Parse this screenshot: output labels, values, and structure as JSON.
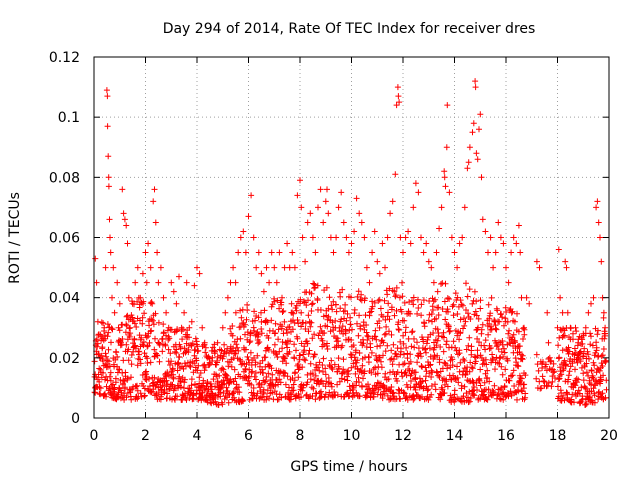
{
  "chart_data": {
    "type": "scatter",
    "title": "Day 294 of 2014, Rate Of TEC Index for receiver dres",
    "xlabel": "GPS time / hours",
    "ylabel": "ROTI / TECUs",
    "xlim": [
      0,
      20
    ],
    "ylim": [
      0,
      0.12
    ],
    "xticks": [
      0,
      2,
      4,
      6,
      8,
      10,
      12,
      14,
      16,
      18,
      20
    ],
    "xtick_labels": [
      "0",
      "2",
      "4",
      "6",
      "8",
      "10",
      "12",
      "14",
      "16",
      "18",
      "20"
    ],
    "yticks": [
      0,
      0.02,
      0.04,
      0.06,
      0.08,
      0.1,
      0.12
    ],
    "ytick_labels": [
      "0",
      "0.02",
      "0.04",
      "0.06",
      "0.08",
      "0.1",
      "0.12"
    ],
    "grid": true,
    "marker": "+",
    "color": "#ff0000",
    "series": [
      {
        "name": "ROTI",
        "points": [
          [
            0.05,
            0.053
          ],
          [
            0.1,
            0.045
          ],
          [
            0.15,
            0.032
          ],
          [
            0.2,
            0.012
          ],
          [
            0.25,
            0.02
          ],
          [
            0.3,
            0.027
          ],
          [
            0.35,
            0.015
          ],
          [
            0.4,
            0.03
          ],
          [
            0.45,
            0.05
          ],
          [
            0.5,
            0.109
          ],
          [
            0.52,
            0.107
          ],
          [
            0.53,
            0.097
          ],
          [
            0.55,
            0.087
          ],
          [
            0.57,
            0.08
          ],
          [
            0.58,
            0.077
          ],
          [
            0.6,
            0.066
          ],
          [
            0.62,
            0.06
          ],
          [
            0.65,
            0.055
          ],
          [
            0.7,
            0.04
          ],
          [
            0.75,
            0.05
          ],
          [
            0.8,
            0.035
          ],
          [
            0.85,
            0.022
          ],
          [
            0.9,
            0.045
          ],
          [
            0.95,
            0.03
          ],
          [
            1.0,
            0.038
          ],
          [
            1.05,
            0.025
          ],
          [
            1.1,
            0.076
          ],
          [
            1.15,
            0.068
          ],
          [
            1.2,
            0.066
          ],
          [
            1.25,
            0.064
          ],
          [
            1.3,
            0.058
          ],
          [
            1.35,
            0.04
          ],
          [
            1.4,
            0.03
          ],
          [
            1.5,
            0.038
          ],
          [
            1.6,
            0.045
          ],
          [
            1.7,
            0.05
          ],
          [
            1.8,
            0.04
          ],
          [
            1.9,
            0.048
          ],
          [
            2.0,
            0.055
          ],
          [
            2.05,
            0.045
          ],
          [
            2.1,
            0.058
          ],
          [
            2.2,
            0.05
          ],
          [
            2.3,
            0.072
          ],
          [
            2.35,
            0.076
          ],
          [
            2.4,
            0.065
          ],
          [
            2.45,
            0.055
          ],
          [
            2.5,
            0.045
          ],
          [
            2.6,
            0.05
          ],
          [
            2.7,
            0.04
          ],
          [
            2.8,
            0.035
          ],
          [
            2.9,
            0.03
          ],
          [
            3.0,
            0.045
          ],
          [
            3.1,
            0.042
          ],
          [
            3.2,
            0.038
          ],
          [
            3.3,
            0.047
          ],
          [
            3.4,
            0.03
          ],
          [
            3.5,
            0.035
          ],
          [
            3.6,
            0.045
          ],
          [
            3.7,
            0.03
          ],
          [
            3.8,
            0.032
          ],
          [
            3.9,
            0.044
          ],
          [
            4.0,
            0.05
          ],
          [
            4.1,
            0.048
          ],
          [
            4.2,
            0.03
          ],
          [
            4.3,
            0.025
          ],
          [
            4.4,
            0.02
          ],
          [
            4.5,
            0.018
          ],
          [
            4.6,
            0.02
          ],
          [
            4.7,
            0.022
          ],
          [
            4.8,
            0.025
          ],
          [
            4.9,
            0.02
          ],
          [
            5.0,
            0.03
          ],
          [
            5.1,
            0.035
          ],
          [
            5.2,
            0.04
          ],
          [
            5.3,
            0.045
          ],
          [
            5.4,
            0.05
          ],
          [
            5.5,
            0.045
          ],
          [
            5.6,
            0.055
          ],
          [
            5.7,
            0.06
          ],
          [
            5.8,
            0.062
          ],
          [
            5.9,
            0.055
          ],
          [
            6.0,
            0.067
          ],
          [
            6.1,
            0.074
          ],
          [
            6.2,
            0.06
          ],
          [
            6.3,
            0.05
          ],
          [
            6.4,
            0.055
          ],
          [
            6.5,
            0.048
          ],
          [
            6.6,
            0.042
          ],
          [
            6.7,
            0.05
          ],
          [
            6.8,
            0.045
          ],
          [
            6.9,
            0.055
          ],
          [
            7.0,
            0.05
          ],
          [
            7.1,
            0.045
          ],
          [
            7.2,
            0.055
          ],
          [
            7.3,
            0.04
          ],
          [
            7.4,
            0.05
          ],
          [
            7.5,
            0.058
          ],
          [
            7.6,
            0.05
          ],
          [
            7.7,
            0.055
          ],
          [
            7.8,
            0.05
          ],
          [
            7.9,
            0.074
          ],
          [
            8.0,
            0.079
          ],
          [
            8.05,
            0.07
          ],
          [
            8.1,
            0.06
          ],
          [
            8.2,
            0.052
          ],
          [
            8.3,
            0.065
          ],
          [
            8.4,
            0.068
          ],
          [
            8.5,
            0.06
          ],
          [
            8.6,
            0.055
          ],
          [
            8.7,
            0.07
          ],
          [
            8.8,
            0.076
          ],
          [
            8.9,
            0.065
          ],
          [
            9.0,
            0.072
          ],
          [
            9.05,
            0.076
          ],
          [
            9.1,
            0.068
          ],
          [
            9.2,
            0.06
          ],
          [
            9.3,
            0.055
          ],
          [
            9.4,
            0.06
          ],
          [
            9.5,
            0.07
          ],
          [
            9.6,
            0.075
          ],
          [
            9.7,
            0.065
          ],
          [
            9.8,
            0.06
          ],
          [
            9.9,
            0.055
          ],
          [
            10.0,
            0.058
          ],
          [
            10.1,
            0.062
          ],
          [
            10.2,
            0.073
          ],
          [
            10.3,
            0.068
          ],
          [
            10.4,
            0.065
          ],
          [
            10.5,
            0.06
          ],
          [
            10.6,
            0.05
          ],
          [
            10.7,
            0.045
          ],
          [
            10.8,
            0.055
          ],
          [
            10.9,
            0.062
          ],
          [
            11.0,
            0.052
          ],
          [
            11.1,
            0.048
          ],
          [
            11.2,
            0.058
          ],
          [
            11.3,
            0.05
          ],
          [
            11.4,
            0.06
          ],
          [
            11.5,
            0.068
          ],
          [
            11.6,
            0.072
          ],
          [
            11.7,
            0.081
          ],
          [
            11.75,
            0.104
          ],
          [
            11.8,
            0.11
          ],
          [
            11.82,
            0.107
          ],
          [
            11.85,
            0.105
          ],
          [
            11.9,
            0.06
          ],
          [
            12.0,
            0.055
          ],
          [
            12.1,
            0.06
          ],
          [
            12.2,
            0.062
          ],
          [
            12.3,
            0.058
          ],
          [
            12.4,
            0.07
          ],
          [
            12.5,
            0.078
          ],
          [
            12.6,
            0.075
          ],
          [
            12.7,
            0.06
          ],
          [
            12.8,
            0.055
          ],
          [
            12.9,
            0.058
          ],
          [
            13.0,
            0.052
          ],
          [
            13.1,
            0.05
          ],
          [
            13.2,
            0.045
          ],
          [
            13.3,
            0.055
          ],
          [
            13.4,
            0.063
          ],
          [
            13.5,
            0.07
          ],
          [
            13.6,
            0.082
          ],
          [
            13.62,
            0.08
          ],
          [
            13.65,
            0.077
          ],
          [
            13.7,
            0.09
          ],
          [
            13.72,
            0.104
          ],
          [
            13.8,
            0.075
          ],
          [
            13.9,
            0.06
          ],
          [
            14.0,
            0.055
          ],
          [
            14.1,
            0.05
          ],
          [
            14.2,
            0.058
          ],
          [
            14.3,
            0.06
          ],
          [
            14.4,
            0.07
          ],
          [
            14.5,
            0.083
          ],
          [
            14.55,
            0.085
          ],
          [
            14.6,
            0.09
          ],
          [
            14.7,
            0.095
          ],
          [
            14.75,
            0.098
          ],
          [
            14.8,
            0.112
          ],
          [
            14.82,
            0.11
          ],
          [
            14.85,
            0.088
          ],
          [
            14.9,
            0.086
          ],
          [
            14.95,
            0.096
          ],
          [
            15.0,
            0.101
          ],
          [
            15.05,
            0.08
          ],
          [
            15.1,
            0.066
          ],
          [
            15.2,
            0.062
          ],
          [
            15.3,
            0.055
          ],
          [
            15.4,
            0.06
          ],
          [
            15.5,
            0.05
          ],
          [
            15.6,
            0.055
          ],
          [
            15.7,
            0.065
          ],
          [
            15.8,
            0.06
          ],
          [
            15.9,
            0.058
          ],
          [
            16.0,
            0.05
          ],
          [
            16.1,
            0.045
          ],
          [
            16.2,
            0.055
          ],
          [
            16.3,
            0.06
          ],
          [
            16.4,
            0.058
          ],
          [
            16.5,
            0.064
          ],
          [
            16.55,
            0.055
          ],
          [
            16.6,
            0.04
          ],
          [
            16.7,
            0.03
          ],
          [
            16.8,
            0.04
          ],
          [
            16.9,
            0.038
          ],
          [
            17.2,
            0.052
          ],
          [
            17.3,
            0.05
          ],
          [
            17.4,
            0.018
          ],
          [
            17.5,
            0.012
          ],
          [
            17.6,
            0.035
          ],
          [
            17.65,
            0.025
          ],
          [
            17.7,
            0.02
          ],
          [
            17.75,
            0.016
          ],
          [
            17.8,
            0.012
          ],
          [
            17.85,
            0.018
          ],
          [
            18.0,
            0.03
          ],
          [
            18.05,
            0.056
          ],
          [
            18.1,
            0.04
          ],
          [
            18.2,
            0.035
          ],
          [
            18.3,
            0.052
          ],
          [
            18.35,
            0.05
          ],
          [
            18.4,
            0.035
          ],
          [
            18.5,
            0.03
          ],
          [
            18.6,
            0.028
          ],
          [
            18.7,
            0.03
          ],
          [
            18.8,
            0.025
          ],
          [
            18.9,
            0.022
          ],
          [
            19.0,
            0.028
          ],
          [
            19.1,
            0.03
          ],
          [
            19.2,
            0.035
          ],
          [
            19.3,
            0.038
          ],
          [
            19.4,
            0.04
          ],
          [
            19.5,
            0.07
          ],
          [
            19.55,
            0.072
          ],
          [
            19.6,
            0.065
          ],
          [
            19.65,
            0.06
          ],
          [
            19.7,
            0.052
          ],
          [
            19.75,
            0.04
          ],
          [
            19.8,
            0.035
          ],
          [
            19.85,
            0.03
          ]
        ],
        "envelope": {
          "x": [
            0,
            0.5,
            1,
            1.5,
            2,
            2.5,
            3,
            3.5,
            4,
            4.5,
            5,
            5.5,
            6,
            6.5,
            7,
            7.5,
            8,
            8.5,
            9,
            9.5,
            10,
            10.5,
            11,
            11.5,
            12,
            12.5,
            13,
            13.5,
            14,
            14.5,
            15,
            15.5,
            16,
            16.5,
            16.7,
            17.4,
            17.9,
            18.0,
            18.5,
            19,
            19.5,
            19.9
          ],
          "low": [
            0.008,
            0.007,
            0.006,
            0.006,
            0.007,
            0.006,
            0.006,
            0.006,
            0.006,
            0.005,
            0.004,
            0.005,
            0.006,
            0.006,
            0.006,
            0.006,
            0.006,
            0.006,
            0.007,
            0.007,
            0.007,
            0.006,
            0.007,
            0.006,
            0.006,
            0.006,
            0.006,
            0.006,
            0.005,
            0.005,
            0.006,
            0.006,
            0.006,
            0.006,
            0.006,
            0.01,
            0.01,
            0.006,
            0.005,
            0.004,
            0.005,
            0.006
          ],
          "high": [
            0.03,
            0.035,
            0.03,
            0.04,
            0.042,
            0.035,
            0.03,
            0.03,
            0.028,
            0.025,
            0.025,
            0.035,
            0.04,
            0.035,
            0.04,
            0.038,
            0.04,
            0.045,
            0.045,
            0.042,
            0.045,
            0.04,
            0.04,
            0.045,
            0.045,
            0.04,
            0.04,
            0.045,
            0.045,
            0.045,
            0.04,
            0.04,
            0.038,
            0.035,
            0.03,
            0.02,
            0.022,
            0.03,
            0.03,
            0.028,
            0.03,
            0.035
          ]
        }
      }
    ]
  }
}
